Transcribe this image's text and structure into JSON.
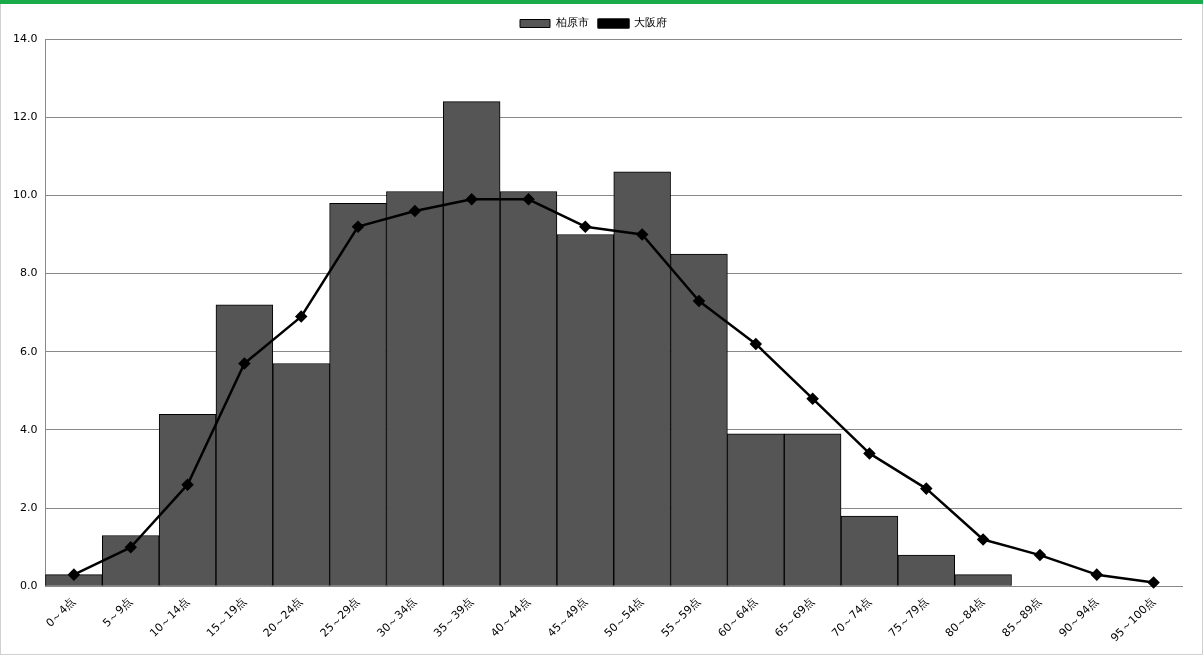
{
  "chart_data": {
    "type": "bar",
    "categories": [
      "0～4点",
      "5～9点",
      "10～14点",
      "15～19点",
      "20～24点",
      "25～29点",
      "30～34点",
      "35～39点",
      "40～44点",
      "45～49点",
      "50～54点",
      "55～59点",
      "60～64点",
      "65～69点",
      "70～74点",
      "75～79点",
      "80～84点",
      "85～89点",
      "90～94点",
      "95～100点"
    ],
    "series": [
      {
        "name": "柏原市",
        "color": "#555555",
        "values": [
          0.3,
          1.3,
          4.4,
          7.2,
          5.7,
          9.8,
          10.1,
          12.4,
          10.1,
          9.0,
          10.6,
          8.5,
          3.9,
          3.9,
          1.8,
          0.8,
          0.3,
          0,
          0,
          0
        ]
      },
      {
        "name": "大阪府",
        "type": "line",
        "color": "#000000",
        "marker": "diamond",
        "values": [
          0.3,
          1.0,
          2.6,
          5.7,
          6.9,
          9.2,
          9.6,
          9.9,
          9.9,
          9.2,
          9.0,
          7.3,
          6.2,
          4.8,
          3.4,
          2.5,
          1.2,
          0.8,
          0.3,
          0.1
        ]
      }
    ],
    "ylim": [
      0,
      14
    ],
    "yticks": [
      {
        "value": 0,
        "label": "0.0"
      },
      {
        "value": 2,
        "label": "2.0"
      },
      {
        "value": 4,
        "label": "4.0"
      },
      {
        "value": 6,
        "label": "6.0"
      },
      {
        "value": 8,
        "label": "8.0"
      },
      {
        "value": 10,
        "label": "10.0"
      },
      {
        "value": 12,
        "label": "12.0"
      },
      {
        "value": 14,
        "label": "14.0"
      }
    ],
    "grid": "y",
    "legend": "top"
  }
}
